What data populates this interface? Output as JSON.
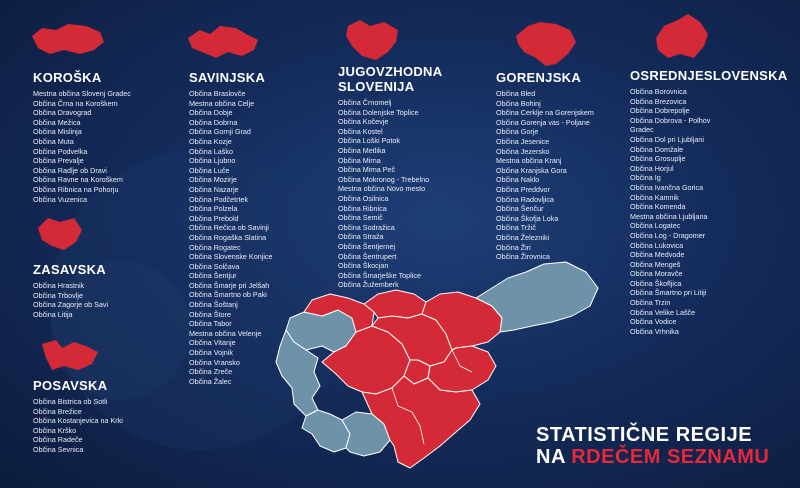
{
  "title": {
    "line1": "STATISTIČNE REGIJE",
    "line2_prefix": "NA",
    "line2_highlight": "RDEČEM SEZNAMU"
  },
  "colors": {
    "red": "#d42a37",
    "blue": "#6e93a8",
    "background": "#142c5c"
  },
  "regions": {
    "koroska": {
      "name": "KOROŠKA",
      "items": [
        "Mestna občina Slovenj Gradec",
        "Občina Črna na Koroškem",
        "Občina Dravograd",
        "Občina Mežica",
        "Občina Mislinja",
        "Občina Muta",
        "Občina Podvelka",
        "Občina Prevalje",
        "Občina Radlje ob Dravi",
        "Občina Ravne na Koroškem",
        "Občina Ribnica na Pohorju",
        "Občina Vuzenica"
      ]
    },
    "zasavska": {
      "name": "ZASAVSKA",
      "items": [
        "Občina Hrastnik",
        "Občina Trbovlje",
        "Občina Zagorje ob Savi",
        "Občina Litija"
      ]
    },
    "posavska": {
      "name": "POSAVSKA",
      "items": [
        "Občina Bistrica ob Sotli",
        "Občina Brežice",
        "Občina Kostanjevica na Krki",
        "Občina Krško",
        "Občina Radeče",
        "Občina Sevnica"
      ]
    },
    "savinjska": {
      "name": "SAVINJSKA",
      "items": [
        "Občina Braslovče",
        "Mestna občina Celje",
        "Občina Dobje",
        "Občina Dobrna",
        "Občina Gornji Grad",
        "Občina Kozje",
        "Občina Laško",
        "Občina Ljubno",
        "Občina Luče",
        "Občina Mozirje",
        "Občina Nazarje",
        "Občina Podčetrtek",
        "Občina Polzela",
        "Občina Prebold",
        "Občina Rečica ob Savinji",
        "Občina Rogaška Slatina",
        "Občina Rogatec",
        "Občina Slovenske Konjice",
        "Občina Solčava",
        "Občina Šentjur",
        "Občina Šmarje pri Jelšah",
        "Občina Šmartno ob Paki",
        "Občina Šoštanj",
        "Občina Štore",
        "Občina Tabor",
        "Mestna občina Velenje",
        "Občina Vitanje",
        "Občina Vojnik",
        "Občina Vransko",
        "Občina Zreče",
        "Občina Žalec"
      ]
    },
    "jugovzhodna": {
      "name_line1": "JUGOVZHODNA",
      "name_line2": "SLOVENIJA",
      "items": [
        "Občina Črnomelj",
        "Občina Dolenjske Toplice",
        "Občina Kočevje",
        "Občina Kostel",
        "Občina Loški Potok",
        "Občina Metlika",
        "Občina Mirna",
        "Občina Mirna Peč",
        "Občina Mokronog - Trebelno",
        "Mestna občina Novo mesto",
        "Občina Osilnica",
        "Občina Ribnica",
        "Občina Semič",
        "Občina Sodražica",
        "Občina Straža",
        "Občina Šentjernej",
        "Občina Šentrupert",
        "Občina Škocjan",
        "Občina Šmarješke Toplice",
        "Občina Žužemberk"
      ]
    },
    "gorenjska": {
      "name": "GORENJSKA",
      "items": [
        "Občina Bled",
        "Občina Bohinj",
        "Občina Cerklje na Gorenjskem",
        "Občina Gorenja vas - Poljane",
        "Občina Gorje",
        "Občina Jesenice",
        "Občina Jezersko",
        "Mestna občina Kranj",
        "Občina Kranjska Gora",
        "Občina Naklo",
        "Občina Preddvor",
        "Občina Radovljica",
        "Občina Šenčur",
        "Občina Škofja Loka",
        "Občina Tržič",
        "Občina Železniki",
        "Občina Žiri",
        "Občina Žirovnica"
      ]
    },
    "osrednjeslovenska": {
      "name": "OSREDNJESLOVENSKA",
      "items": [
        "Občina Borovnica",
        "Občina Brezovica",
        "Občina Dobrepolje",
        "Občina Dobrova - Polhov",
        "Gradec",
        "Občina Dol pri Ljubljani",
        "Občina Domžale",
        "Občina Grosuplje",
        "Občina Horjul",
        "Občina Ig",
        "Občina Ivančna Gorica",
        "Občina Kamnik",
        "Občina Komenda",
        "Mestna občina Ljubljana",
        "Občina Logatec",
        "Občina Log - Dragomer",
        "Občina Lukovica",
        "Občina Medvode",
        "Občina Mengeš",
        "Občina Moravče",
        "Občina Škofljica",
        "Občina Šmartno pri Litiji",
        "Občina Trzin",
        "Občina Velike Lašče",
        "Občina Vodice",
        "Občina Vrhnika"
      ]
    }
  }
}
